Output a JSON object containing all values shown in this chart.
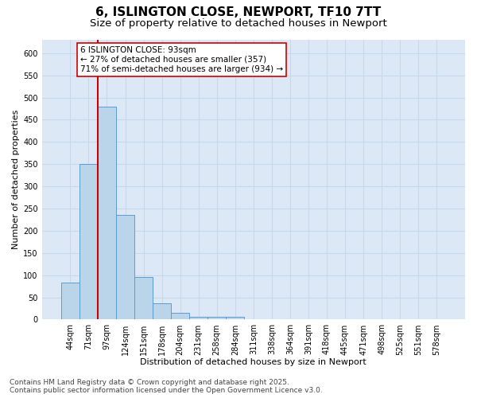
{
  "title_line1": "6, ISLINGTON CLOSE, NEWPORT, TF10 7TT",
  "title_line2": "Size of property relative to detached houses in Newport",
  "xlabel": "Distribution of detached houses by size in Newport",
  "ylabel": "Number of detached properties",
  "categories": [
    "44sqm",
    "71sqm",
    "97sqm",
    "124sqm",
    "151sqm",
    "178sqm",
    "204sqm",
    "231sqm",
    "258sqm",
    "284sqm",
    "311sqm",
    "338sqm",
    "364sqm",
    "391sqm",
    "418sqm",
    "445sqm",
    "471sqm",
    "498sqm",
    "525sqm",
    "551sqm",
    "578sqm"
  ],
  "values": [
    83,
    350,
    480,
    236,
    96,
    36,
    16,
    7,
    6,
    7,
    0,
    0,
    0,
    0,
    0,
    0,
    0,
    0,
    0,
    0,
    0
  ],
  "bar_color": "#bad4ea",
  "bar_edge_color": "#5b9bd5",
  "vline_color": "#cc0000",
  "vline_xindex": 1.5,
  "annotation_text": "6 ISLINGTON CLOSE: 93sqm\n← 27% of detached houses are smaller (357)\n71% of semi-detached houses are larger (934) →",
  "annotation_box_facecolor": "#ffffff",
  "annotation_box_edgecolor": "#cc0000",
  "ylim": [
    0,
    630
  ],
  "yticks": [
    0,
    50,
    100,
    150,
    200,
    250,
    300,
    350,
    400,
    450,
    500,
    550,
    600
  ],
  "grid_color": "#c8d8e8",
  "background_color": "#dce8f5",
  "footer_text": "Contains HM Land Registry data © Crown copyright and database right 2025.\nContains public sector information licensed under the Open Government Licence v3.0.",
  "title_fontsize": 11,
  "subtitle_fontsize": 9.5,
  "axis_label_fontsize": 8,
  "tick_fontsize": 7,
  "annotation_fontsize": 7.5,
  "footer_fontsize": 6.5
}
